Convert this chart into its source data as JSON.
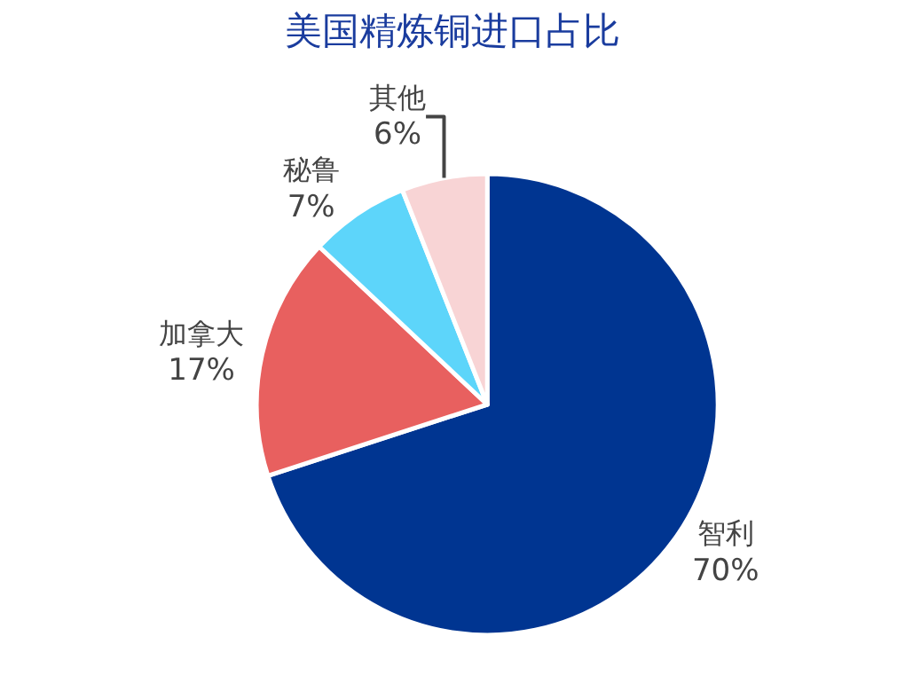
{
  "chart_data": {
    "type": "pie",
    "title": "美国精炼铜进口占比",
    "categories": [
      "智利",
      "加拿大",
      "秘鲁",
      "其他"
    ],
    "values": [
      70,
      17,
      7,
      6
    ],
    "value_labels": [
      "70%",
      "17%",
      "7%",
      "6%"
    ],
    "colors": [
      "#003591",
      "#e8605f",
      "#5dd5fa",
      "#f8d4d5"
    ],
    "legend": false
  }
}
